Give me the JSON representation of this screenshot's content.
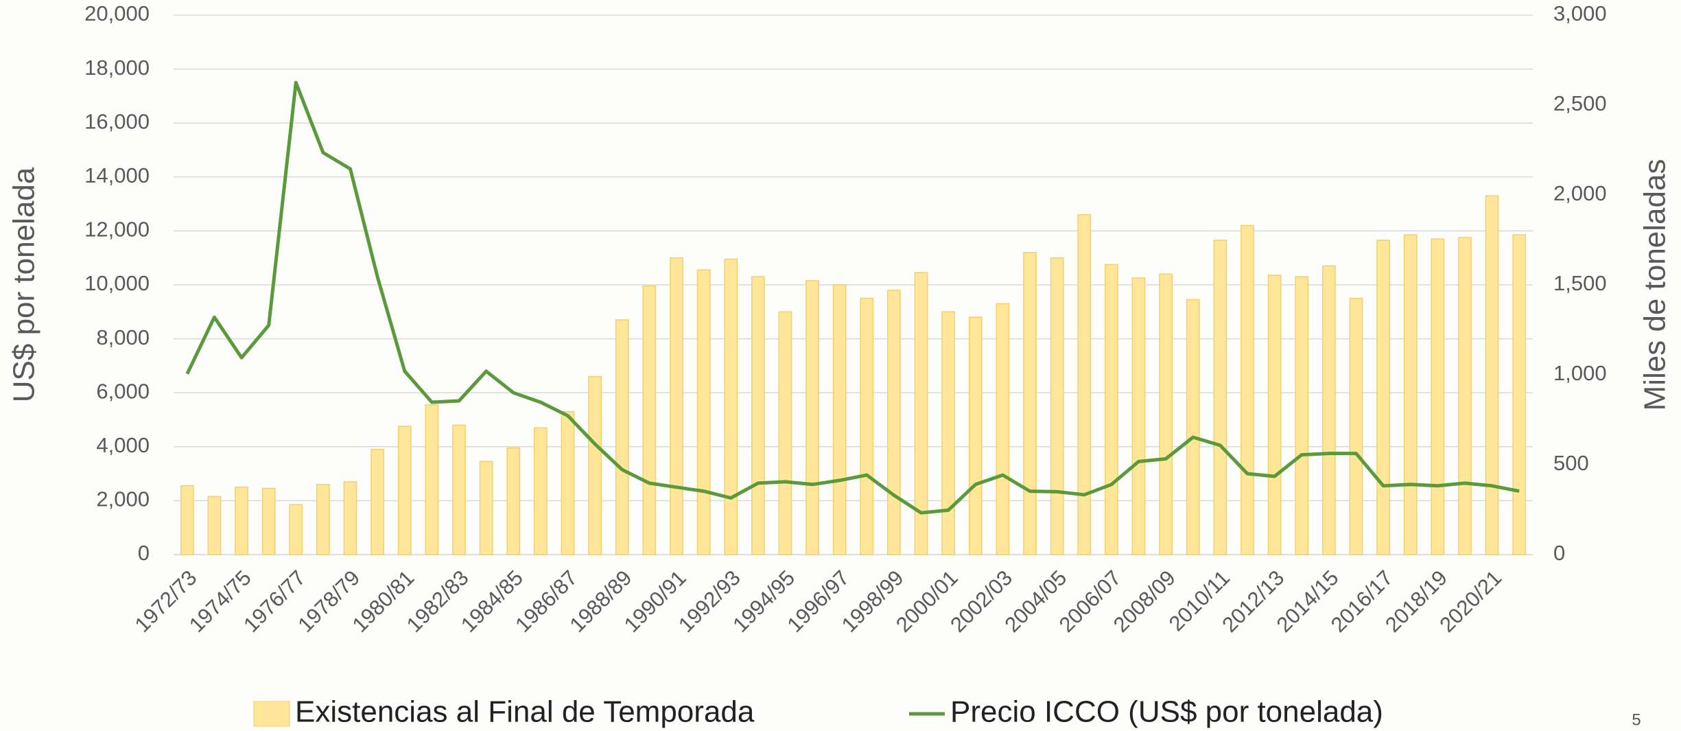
{
  "chart_data": {
    "type": "bar-line",
    "y_label": "US$ por tonelada",
    "y2_label": "Miles de toneladas",
    "page_number": "5",
    "legend": "bottom",
    "grid": true,
    "categories": [
      "1972/73",
      null,
      "1974/75",
      null,
      "1976/77",
      null,
      "1978/79",
      null,
      "1980/81",
      null,
      "1982/83",
      null,
      "1984/85",
      null,
      "1986/87",
      null,
      "1988/89",
      null,
      "1990/91",
      null,
      "1992/93",
      null,
      "1994/95",
      null,
      "1996/97",
      null,
      "1998/99",
      null,
      "2000/01",
      null,
      "2002/03",
      null,
      "2004/05",
      null,
      "2006/07",
      null,
      "2008/09",
      null,
      "2010/11",
      null,
      "2012/13",
      null,
      "2014/15",
      null,
      "2016/17",
      null,
      "2018/19",
      null,
      "2020/21",
      null
    ],
    "series": [
      {
        "name": "Existencias al Final de Temporada",
        "type": "bar",
        "axis": "y2",
        "color": "#ffe699",
        "edge_color": "#f2d06b",
        "values": [
          383,
          323,
          375,
          368,
          278,
          390,
          405,
          585,
          713,
          833,
          720,
          518,
          593,
          705,
          795,
          990,
          1305,
          1493,
          1650,
          1583,
          1643,
          1545,
          1350,
          1523,
          1500,
          1425,
          1470,
          1568,
          1350,
          1320,
          1395,
          1680,
          1650,
          1890,
          1613,
          1538,
          1560,
          1418,
          1748,
          1830,
          1553,
          1545,
          1605,
          1425,
          1748,
          1778,
          1755,
          1763,
          1995,
          1778
        ]
      },
      {
        "name": "Precio ICCO (US$ por tonelada)",
        "type": "line",
        "axis": "y",
        "color": "#5a9a3a",
        "values": [
          6700,
          8800,
          7300,
          8500,
          17500,
          14900,
          14300,
          10300,
          6800,
          5650,
          5700,
          6800,
          6000,
          5650,
          5150,
          4100,
          3150,
          2650,
          2500,
          2350,
          2100,
          2650,
          2700,
          2600,
          2750,
          2950,
          2200,
          1550,
          1650,
          2600,
          2950,
          2350,
          2330,
          2220,
          2600,
          3450,
          3550,
          4350,
          4050,
          3000,
          2900,
          3700,
          3750,
          3750,
          2550,
          2600,
          2550,
          2650,
          2550,
          2350
        ]
      }
    ],
    "ylim": [
      0,
      20000
    ],
    "yticks": [
      0,
      {
        "value": 2000,
        "label": "2,000"
      },
      {
        "value": 4000,
        "label": "4,000"
      },
      {
        "value": 6000,
        "label": "6,000"
      },
      {
        "value": 8000,
        "label": "8,000"
      },
      {
        "value": 10000,
        "label": "10,000"
      },
      {
        "value": 12000,
        "label": "12,000"
      },
      {
        "value": 14000,
        "label": "14,000"
      },
      {
        "value": 16000,
        "label": "16,000"
      },
      {
        "value": 18000,
        "label": "18,000"
      },
      {
        "value": 20000,
        "label": "20,000"
      }
    ],
    "y2lim": [
      0,
      3000
    ],
    "y2ticks": [
      0,
      500,
      {
        "value": 1000,
        "label": "1,000"
      },
      {
        "value": 1500,
        "label": "1,500"
      },
      {
        "value": 2000,
        "label": "2,000"
      },
      {
        "value": 2500,
        "label": "2,500"
      },
      {
        "value": 3000,
        "label": "3,000"
      }
    ]
  }
}
